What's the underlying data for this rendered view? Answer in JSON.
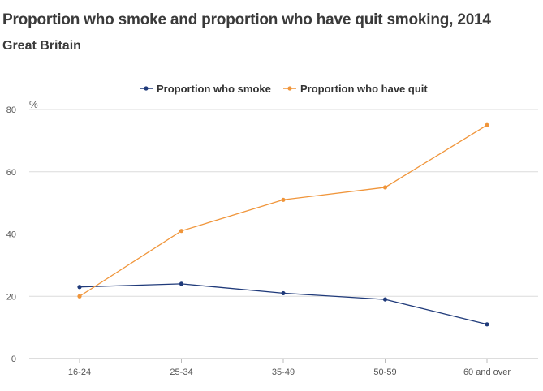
{
  "header": {
    "title": "Proportion who smoke and proportion who have quit smoking, 2014",
    "subtitle": "Great Britain"
  },
  "chart_data": {
    "type": "line",
    "title": "Proportion who smoke and proportion who have quit smoking, 2014",
    "subtitle": "Great Britain",
    "xlabel": "",
    "ylabel": "%",
    "categories": [
      "16-24",
      "25-34",
      "35-49",
      "50-59",
      "60 and over"
    ],
    "ylim": [
      0,
      80
    ],
    "yticks": [
      0,
      20,
      40,
      60,
      80
    ],
    "grid": true,
    "legend": "top-center",
    "series": [
      {
        "name": "Proportion who smoke",
        "color": "#1f3a7a",
        "values": [
          23,
          24,
          21,
          19,
          11
        ]
      },
      {
        "name": "Proportion who have quit",
        "color": "#f0953a",
        "values": [
          20,
          41,
          51,
          55,
          75
        ]
      }
    ]
  }
}
